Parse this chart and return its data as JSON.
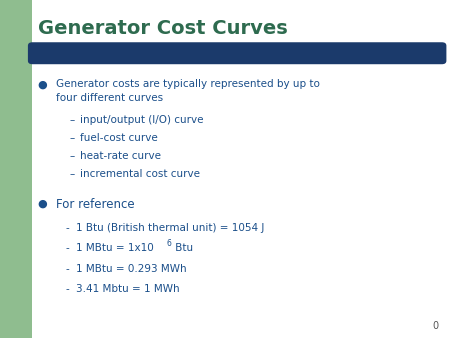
{
  "title": "Generator Cost Curves",
  "title_color": "#2E6B4F",
  "title_fontsize": 14,
  "background_color": "#FFFFFF",
  "left_bar_color": "#8FBD8F",
  "header_bar_color": "#1B3A6B",
  "bullet1_text": "Generator costs are typically represented by up to\nfour different curves",
  "sub_items1": [
    "input/output (I/O) curve",
    "fuel-cost curve",
    "heat-rate curve",
    "incremental cost curve"
  ],
  "bullet2_text": "For reference",
  "sub_items2": [
    "1 Btu (British thermal unit) = 1054 J",
    "1 MBtu = 1x10",
    "1 MBtu = 0.293 MWh",
    "3.41 Mbtu = 1 MWh"
  ],
  "text_color": "#1B4F8A",
  "bullet_color": "#1B4F8A",
  "page_number": "0"
}
